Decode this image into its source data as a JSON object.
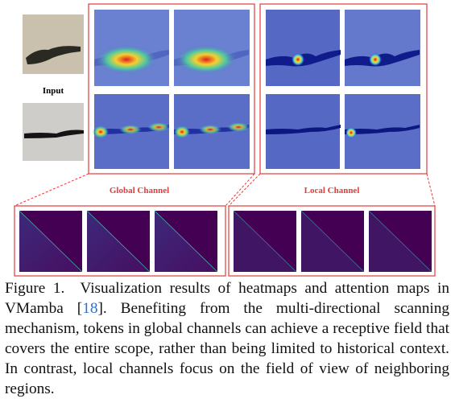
{
  "figure": {
    "labels": {
      "input": "Input",
      "global": "Global Channel",
      "local": "Local Channel"
    },
    "caption": {
      "prefix": "Figure 1.",
      "text_before_ref": "Visualization results of heatmaps and attention maps in VMamba [",
      "ref": "18",
      "text_after_ref": "]. Benefiting from the multi-directional scanning mechanism, tokens in global channels can achieve a receptive field that covers the entire scope, rather than being limited to historical context. In contrast, local channels focus on the field of view of neighboring regions."
    }
  }
}
